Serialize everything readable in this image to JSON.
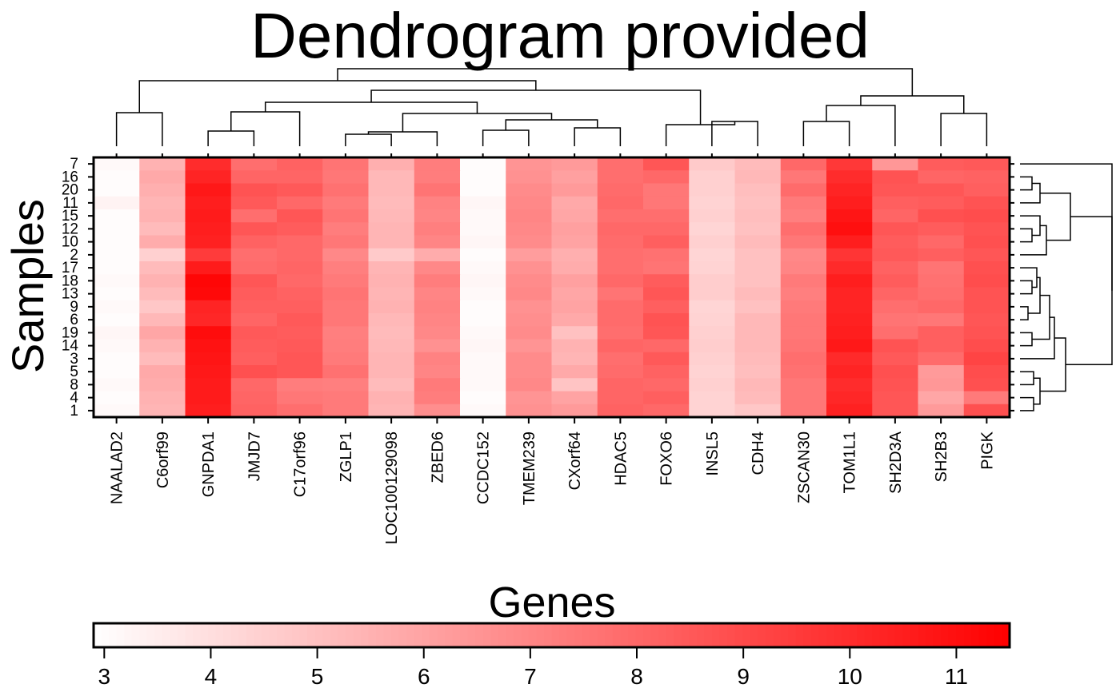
{
  "chart_data": {
    "type": "heatmap",
    "title": "Dendrogram provided",
    "xlabel": "Genes",
    "ylabel": "Samples",
    "columns": [
      "NAALAD2",
      "C6orf99",
      "GNPDA1",
      "JMJD7",
      "C17orf96",
      "ZGLP1",
      "LOC100129098",
      "ZBED6",
      "CCDC152",
      "TMEM239",
      "CXorf64",
      "HDAC5",
      "FOXO6",
      "INSL5",
      "CDH4",
      "ZSCAN30",
      "TOM1L1",
      "SH2D3A",
      "SH2B3",
      "PIGK"
    ],
    "rows": [
      "7",
      "16",
      "20",
      "11",
      "15",
      "12",
      "10",
      "2",
      "17",
      "18",
      "13",
      "9",
      "6",
      "19",
      "14",
      "3",
      "5",
      "8",
      "4",
      "1"
    ],
    "values": [
      [
        3.1,
        5.5,
        10.0,
        7.8,
        8.2,
        7.6,
        5.6,
        7.3,
        3.0,
        6.5,
        6.3,
        7.8,
        8.6,
        4.7,
        5.2,
        8.0,
        9.6,
        6.4,
        8.4,
        8.5
      ],
      [
        3.0,
        5.8,
        10.3,
        8.1,
        8.1,
        7.5,
        5.3,
        7.3,
        3.0,
        6.6,
        6.1,
        7.8,
        8.0,
        4.5,
        5.3,
        7.5,
        10.0,
        8.7,
        8.1,
        8.2
      ],
      [
        3.0,
        5.6,
        10.7,
        8.7,
        8.5,
        7.7,
        5.3,
        7.6,
        3.0,
        6.8,
        6.3,
        7.9,
        7.5,
        4.5,
        5.1,
        7.9,
        10.3,
        8.6,
        8.6,
        8.3
      ],
      [
        3.3,
        5.4,
        10.5,
        8.5,
        8.0,
        7.4,
        5.2,
        7.1,
        3.2,
        6.9,
        5.8,
        8.0,
        7.5,
        4.4,
        5.0,
        7.4,
        10.5,
        8.3,
        8.4,
        8.7
      ],
      [
        3.0,
        5.5,
        10.6,
        7.8,
        8.6,
        7.6,
        5.3,
        7.0,
        3.1,
        7.0,
        5.9,
        7.8,
        7.8,
        4.5,
        5.1,
        7.2,
        10.8,
        8.1,
        8.8,
        8.9
      ],
      [
        3.0,
        5.2,
        10.5,
        8.6,
        8.4,
        7.3,
        5.4,
        7.2,
        3.1,
        6.9,
        6.1,
        8.0,
        8.0,
        4.3,
        5.0,
        7.8,
        11.0,
        8.6,
        8.4,
        8.7
      ],
      [
        3.0,
        5.7,
        10.4,
        8.2,
        8.0,
        7.5,
        5.4,
        7.0,
        3.2,
        6.8,
        6.0,
        7.9,
        8.3,
        4.5,
        5.2,
        7.5,
        10.5,
        8.4,
        8.0,
        8.8
      ],
      [
        3.0,
        4.5,
        9.5,
        7.8,
        8.0,
        6.9,
        4.7,
        5.7,
        3.0,
        6.2,
        5.6,
        7.8,
        7.7,
        4.3,
        5.0,
        6.9,
        9.7,
        8.5,
        8.3,
        8.6
      ],
      [
        3.0,
        5.2,
        10.6,
        7.9,
        8.1,
        7.2,
        5.4,
        6.9,
        3.1,
        6.6,
        5.7,
        7.8,
        7.6,
        4.4,
        5.0,
        7.0,
        10.1,
        8.2,
        7.6,
        8.8
      ],
      [
        3.1,
        5.5,
        11.3,
        8.6,
        8.0,
        7.4,
        5.5,
        7.3,
        3.2,
        6.8,
        6.1,
        8.0,
        8.4,
        4.6,
        5.0,
        7.4,
        10.5,
        8.4,
        7.7,
        8.9
      ],
      [
        3.0,
        5.2,
        11.2,
        8.4,
        8.2,
        7.6,
        5.4,
        7.0,
        3.1,
        6.9,
        5.9,
        7.6,
        8.6,
        4.6,
        5.2,
        7.2,
        10.3,
        8.1,
        7.8,
        8.7
      ],
      [
        3.1,
        4.8,
        10.3,
        8.3,
        8.3,
        7.5,
        5.5,
        7.1,
        3.0,
        6.6,
        6.0,
        7.9,
        8.3,
        4.3,
        5.0,
        7.4,
        10.3,
        7.8,
        8.0,
        8.7
      ],
      [
        3.0,
        5.3,
        10.2,
        8.1,
        8.5,
        7.5,
        5.3,
        7.0,
        3.0,
        6.7,
        5.8,
        7.9,
        8.7,
        4.4,
        5.3,
        7.5,
        10.4,
        7.6,
        7.5,
        8.6
      ],
      [
        3.2,
        5.9,
        11.1,
        8.5,
        8.4,
        7.2,
        5.2,
        6.9,
        3.1,
        6.8,
        5.0,
        7.8,
        8.6,
        4.5,
        5.3,
        7.5,
        10.5,
        7.8,
        8.3,
        8.7
      ],
      [
        3.1,
        5.5,
        10.9,
        8.4,
        8.5,
        7.3,
        5.3,
        6.6,
        3.2,
        6.5,
        5.5,
        8.1,
        8.0,
        4.6,
        5.3,
        7.6,
        10.7,
        8.7,
        8.3,
        8.9
      ],
      [
        3.0,
        5.2,
        10.8,
        8.3,
        8.6,
        7.4,
        5.4,
        7.1,
        3.1,
        6.8,
        5.4,
        7.8,
        8.5,
        4.5,
        5.2,
        7.8,
        10.1,
        8.5,
        7.9,
        9.2
      ],
      [
        3.0,
        5.8,
        10.7,
        8.8,
        8.6,
        7.7,
        5.4,
        7.0,
        3.1,
        6.8,
        5.8,
        7.9,
        8.2,
        4.4,
        5.1,
        7.7,
        10.3,
        8.8,
        6.3,
        8.9
      ],
      [
        3.1,
        5.7,
        10.6,
        8.0,
        7.3,
        7.2,
        5.2,
        7.4,
        3.1,
        6.9,
        4.9,
        8.1,
        8.0,
        4.5,
        5.3,
        7.5,
        10.0,
        8.7,
        6.4,
        8.8
      ],
      [
        3.0,
        5.5,
        10.6,
        8.1,
        7.5,
        7.4,
        5.5,
        7.3,
        3.0,
        6.5,
        6.0,
        8.1,
        8.3,
        4.4,
        5.2,
        7.5,
        10.2,
        8.6,
        5.9,
        7.4
      ],
      [
        3.1,
        5.4,
        10.5,
        8.2,
        7.8,
        7.4,
        5.4,
        6.7,
        3.1,
        6.6,
        6.3,
        8.2,
        8.0,
        4.4,
        4.8,
        7.5,
        10.4,
        8.6,
        6.3,
        8.8
      ]
    ],
    "color_scale": {
      "low_color": "#ffffff",
      "high_color": "#ff0000",
      "min": 2.9,
      "max": 11.5,
      "ticks": [
        3,
        4,
        5,
        6,
        7,
        8,
        9,
        10,
        11
      ]
    },
    "column_dendrogram": {
      "side": "top",
      "leaves": [
        "NAALAD2",
        "C6orf99",
        "GNPDA1",
        "JMJD7",
        "C17orf96",
        "ZGLP1",
        "LOC100129098",
        "ZBED6",
        "CCDC152",
        "TMEM239",
        "CXorf64",
        "HDAC5",
        "FOXO6",
        "INSL5",
        "CDH4",
        "ZSCAN30",
        "TOM1L1",
        "SH2D3A",
        "SH2B3",
        "PIGK"
      ]
    },
    "row_dendrogram": {
      "side": "right",
      "leaves": [
        "7",
        "16",
        "20",
        "11",
        "15",
        "12",
        "10",
        "2",
        "17",
        "18",
        "13",
        "9",
        "6",
        "19",
        "14",
        "3",
        "5",
        "8",
        "4",
        "1"
      ]
    }
  }
}
